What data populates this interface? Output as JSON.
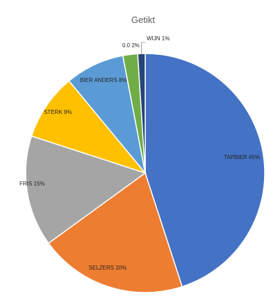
{
  "chart_data": {
    "type": "pie",
    "title": "Getikt",
    "slices": [
      {
        "label": "TAPBIER 45%",
        "value": 45,
        "color": "#4472C4"
      },
      {
        "label": "SELZERS 20%",
        "value": 20,
        "color": "#ED7D31"
      },
      {
        "label": "FRIS 15%",
        "value": 15,
        "color": "#A5A5A5"
      },
      {
        "label": "STERK 9%",
        "value": 9,
        "color": "#FFC000"
      },
      {
        "label": "BIER ANDERS 8%",
        "value": 8,
        "color": "#5B9BD5"
      },
      {
        "label": "0.0 2%",
        "value": 2,
        "color": "#70AD47"
      },
      {
        "label": "WIJN 1%",
        "value": 1,
        "color": "#264478"
      }
    ],
    "start": "12 o'clock",
    "direction": "clockwise"
  }
}
